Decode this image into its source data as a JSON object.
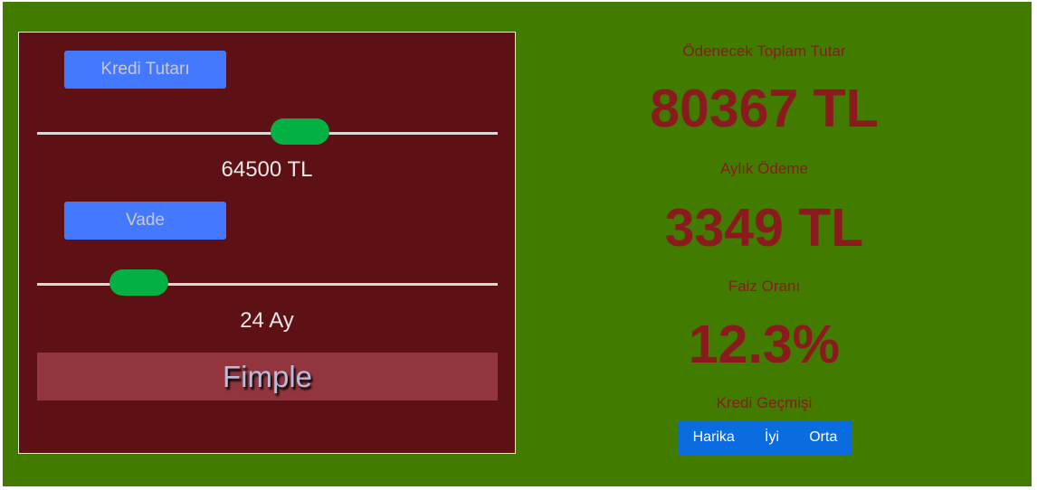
{
  "loan": {
    "amount_button": "Kredi Tutarı",
    "amount_value": "64500 TL",
    "amount_position": 0.58,
    "term_button": "Vade",
    "term_value": "24 Ay",
    "term_position": 0.18,
    "brand": "Fimple"
  },
  "summary": {
    "total_label": "Ödenecek Toplam Tutar",
    "total_value": "80367 TL",
    "monthly_label": "Aylık Ödeme",
    "monthly_value": "3349 TL",
    "rate_label": "Faiz Oranı",
    "rate_value": "12.3%",
    "history_label": "Kredi Geçmişi",
    "history_options": [
      "Harika",
      "İyi",
      "Orta"
    ]
  },
  "colors": {
    "background": "#417b00",
    "panel": "#5e1114",
    "button": "#4479ff",
    "slider_thumb": "#03b044",
    "text_accent": "#8b1a1e",
    "history_button": "#0a6cde"
  }
}
